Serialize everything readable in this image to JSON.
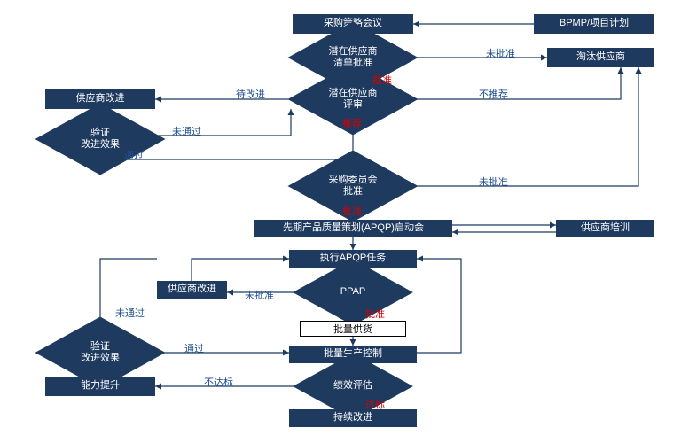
{
  "type": "flowchart",
  "background_color": "#ffffff",
  "node_fill": "#1f3a5f",
  "node_text_color": "#ffffff",
  "arrow_color": "#1f3a5f",
  "label_color_red": "#d40000",
  "label_color_blue": "#1f4f8f",
  "font_size_node": 11,
  "font_size_label": 11,
  "nodes": {
    "n1": {
      "text": "采购策略会议"
    },
    "n2": {
      "text": "BPMP/项目计划"
    },
    "n3": {
      "text": "潜在供应商\n清单批准"
    },
    "n4": {
      "text": "淘汰供应商"
    },
    "n5": {
      "text": "潜在供应商\n评审"
    },
    "n6": {
      "text": "供应商改进"
    },
    "n7": {
      "text": "验证\n改进效果"
    },
    "n8": {
      "text": "采购委员会\n批准"
    },
    "n9": {
      "text": "先期产品质量策划(APQP)启动会"
    },
    "n10": {
      "text": "供应商培训"
    },
    "n11": {
      "text": "执行APQP任务"
    },
    "n12": {
      "text": "PPAP"
    },
    "n13": {
      "text": "供应商改进"
    },
    "n14": {
      "text": "批量供货"
    },
    "n15": {
      "text": "批量生产控制"
    },
    "n16": {
      "text": "绩效评估"
    },
    "n17": {
      "text": "持续改进"
    },
    "n18": {
      "text": "验证\n改进效果"
    },
    "n19": {
      "text": "能力提升"
    }
  },
  "edge_labels": {
    "e1": {
      "text": "未批准",
      "color": "blue"
    },
    "e2": {
      "text": "批准",
      "color": "red"
    },
    "e3": {
      "text": "不推荐",
      "color": "blue"
    },
    "e4": {
      "text": "待改进",
      "color": "blue"
    },
    "e5": {
      "text": "推荐",
      "color": "red"
    },
    "e6": {
      "text": "未通过",
      "color": "blue"
    },
    "e7": {
      "text": "通过",
      "color": "blue"
    },
    "e8": {
      "text": "未批准",
      "color": "blue"
    },
    "e9": {
      "text": "批准",
      "color": "red"
    },
    "e10": {
      "text": "未批准",
      "color": "blue"
    },
    "e11": {
      "text": "批准",
      "color": "red"
    },
    "e12": {
      "text": "未通过",
      "color": "blue"
    },
    "e13": {
      "text": "通过",
      "color": "blue"
    },
    "e14": {
      "text": "不达标",
      "color": "blue"
    },
    "e15": {
      "text": "达标",
      "color": "red"
    }
  }
}
